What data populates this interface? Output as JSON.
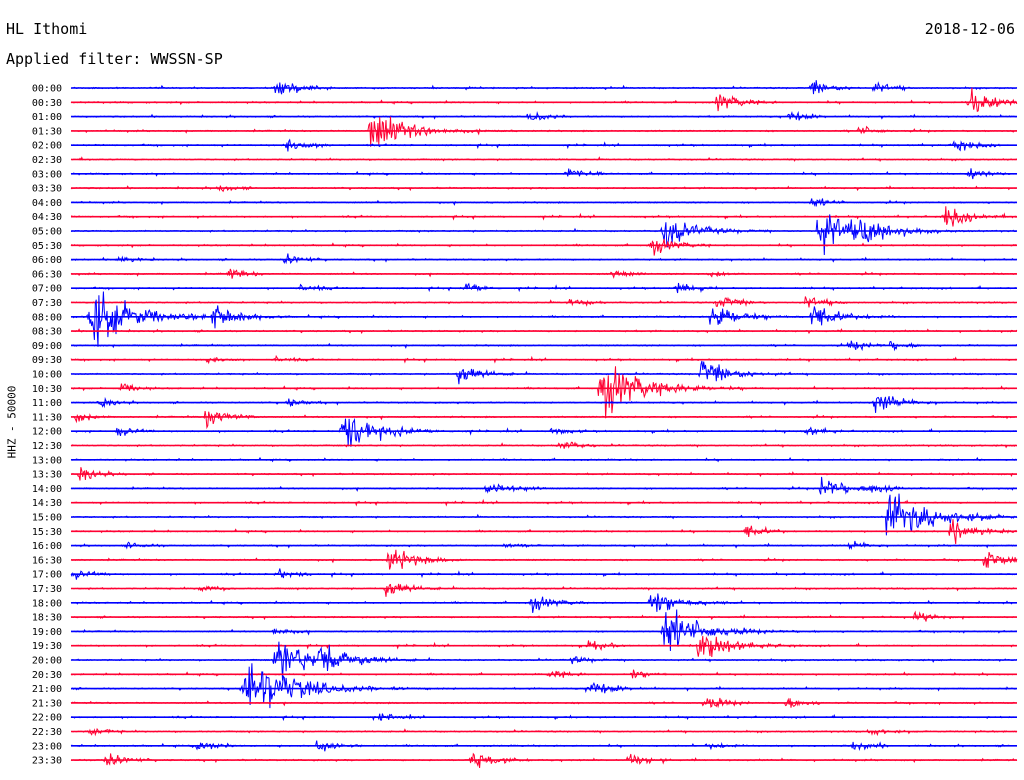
{
  "header": {
    "station": "HL Ithomi",
    "date": "2018-12-06",
    "filter": "Applied filter: WWSSN-SP"
  },
  "axis": {
    "ylabel": "HHZ - 50000"
  },
  "colors": {
    "blue": "#0000ff",
    "red": "#ff0033",
    "background": "#ffffff"
  },
  "chart_data": {
    "type": "seismic drum (helicorder)",
    "channel": "HHZ",
    "line_duration_minutes": 30,
    "lines": [
      "00:00",
      "00:30",
      "01:00",
      "01:30",
      "02:00",
      "02:30",
      "03:00",
      "03:30",
      "04:00",
      "04:30",
      "05:00",
      "05:30",
      "06:00",
      "06:30",
      "07:00",
      "07:30",
      "08:00",
      "08:30",
      "09:00",
      "09:30",
      "10:00",
      "10:30",
      "11:00",
      "11:30",
      "12:00",
      "12:30",
      "13:00",
      "13:30",
      "14:00",
      "14:30",
      "15:00",
      "15:30",
      "16:00",
      "16:30",
      "17:00",
      "17:30",
      "18:00",
      "18:30",
      "19:00",
      "19:30",
      "20:00",
      "20:30",
      "21:00",
      "21:30",
      "22:00",
      "22:30",
      "23:00",
      "23:30"
    ],
    "line_colors": [
      "blue",
      "red"
    ],
    "events": [
      {
        "line": 0,
        "minute": 6.5,
        "amp": 1.0
      },
      {
        "line": 0,
        "minute": 23.5,
        "amp": 0.8
      },
      {
        "line": 0,
        "minute": 25.5,
        "amp": 0.6
      },
      {
        "line": 1,
        "minute": 20.5,
        "amp": 1.0
      },
      {
        "line": 1,
        "minute": 28.5,
        "amp": 1.4
      },
      {
        "line": 2,
        "minute": 14.5,
        "amp": 0.6
      },
      {
        "line": 2,
        "minute": 22.8,
        "amp": 0.6
      },
      {
        "line": 3,
        "minute": 9.5,
        "amp": 2.4
      },
      {
        "line": 3,
        "minute": 25.0,
        "amp": 0.5
      },
      {
        "line": 4,
        "minute": 6.8,
        "amp": 0.8
      },
      {
        "line": 4,
        "minute": 28.0,
        "amp": 0.7
      },
      {
        "line": 6,
        "minute": 15.7,
        "amp": 0.6
      },
      {
        "line": 6,
        "minute": 28.5,
        "amp": 0.6
      },
      {
        "line": 7,
        "minute": 4.7,
        "amp": 0.4
      },
      {
        "line": 8,
        "minute": 23.5,
        "amp": 0.5
      },
      {
        "line": 9,
        "minute": 27.7,
        "amp": 1.2
      },
      {
        "line": 10,
        "minute": 18.8,
        "amp": 1.8
      },
      {
        "line": 10,
        "minute": 23.7,
        "amp": 2.6
      },
      {
        "line": 10,
        "minute": 25.0,
        "amp": 1.4
      },
      {
        "line": 11,
        "minute": 18.4,
        "amp": 1.0
      },
      {
        "line": 12,
        "minute": 1.5,
        "amp": 0.4
      },
      {
        "line": 12,
        "minute": 6.8,
        "amp": 0.6
      },
      {
        "line": 13,
        "minute": 5.0,
        "amp": 0.6
      },
      {
        "line": 13,
        "minute": 17.2,
        "amp": 0.4
      },
      {
        "line": 13,
        "minute": 20.2,
        "amp": 0.4
      },
      {
        "line": 14,
        "minute": 7.3,
        "amp": 0.4
      },
      {
        "line": 14,
        "minute": 12.5,
        "amp": 0.6
      },
      {
        "line": 14,
        "minute": 19.2,
        "amp": 0.6
      },
      {
        "line": 15,
        "minute": 15.8,
        "amp": 0.5
      },
      {
        "line": 15,
        "minute": 20.5,
        "amp": 0.8
      },
      {
        "line": 15,
        "minute": 23.3,
        "amp": 0.7
      },
      {
        "line": 16,
        "minute": 0.6,
        "amp": 3.2
      },
      {
        "line": 16,
        "minute": 4.5,
        "amp": 1.3
      },
      {
        "line": 16,
        "minute": 20.3,
        "amp": 1.5
      },
      {
        "line": 16,
        "minute": 23.5,
        "amp": 1.4
      },
      {
        "line": 18,
        "minute": 24.7,
        "amp": 0.6
      },
      {
        "line": 18,
        "minute": 26.0,
        "amp": 0.5
      },
      {
        "line": 19,
        "minute": 4.3,
        "amp": 0.4
      },
      {
        "line": 19,
        "minute": 6.5,
        "amp": 0.3
      },
      {
        "line": 20,
        "minute": 12.3,
        "amp": 1.0
      },
      {
        "line": 20,
        "minute": 20.0,
        "amp": 1.6
      },
      {
        "line": 21,
        "minute": 1.6,
        "amp": 0.5
      },
      {
        "line": 21,
        "minute": 16.8,
        "amp": 3.0
      },
      {
        "line": 22,
        "minute": 0.9,
        "amp": 0.5
      },
      {
        "line": 22,
        "minute": 6.9,
        "amp": 0.4
      },
      {
        "line": 22,
        "minute": 25.5,
        "amp": 1.2
      },
      {
        "line": 23,
        "minute": 0.1,
        "amp": 0.5
      },
      {
        "line": 23,
        "minute": 4.3,
        "amp": 1.0
      },
      {
        "line": 24,
        "minute": 1.5,
        "amp": 0.6
      },
      {
        "line": 24,
        "minute": 8.6,
        "amp": 2.2
      },
      {
        "line": 24,
        "minute": 15.2,
        "amp": 0.4
      },
      {
        "line": 24,
        "minute": 23.3,
        "amp": 0.5
      },
      {
        "line": 25,
        "minute": 15.5,
        "amp": 0.6
      },
      {
        "line": 27,
        "minute": 0.3,
        "amp": 0.8
      },
      {
        "line": 28,
        "minute": 13.2,
        "amp": 1.0
      },
      {
        "line": 28,
        "minute": 23.8,
        "amp": 1.3
      },
      {
        "line": 28,
        "minute": 25.4,
        "amp": 0.6
      },
      {
        "line": 30,
        "minute": 25.9,
        "amp": 3.0
      },
      {
        "line": 31,
        "minute": 21.4,
        "amp": 0.7
      },
      {
        "line": 31,
        "minute": 27.9,
        "amp": 1.2
      },
      {
        "line": 32,
        "minute": 1.8,
        "amp": 0.4
      },
      {
        "line": 32,
        "minute": 13.8,
        "amp": 0.4
      },
      {
        "line": 32,
        "minute": 24.7,
        "amp": 0.5
      },
      {
        "line": 33,
        "minute": 10.1,
        "amp": 1.4
      },
      {
        "line": 33,
        "minute": 29.0,
        "amp": 1.1
      },
      {
        "line": 34,
        "minute": 0.1,
        "amp": 0.6
      },
      {
        "line": 34,
        "minute": 6.5,
        "amp": 0.6
      },
      {
        "line": 35,
        "minute": 4.1,
        "amp": 0.4
      },
      {
        "line": 35,
        "minute": 10.0,
        "amp": 0.9
      },
      {
        "line": 36,
        "minute": 14.6,
        "amp": 0.9
      },
      {
        "line": 36,
        "minute": 18.4,
        "amp": 1.5
      },
      {
        "line": 37,
        "minute": 26.8,
        "amp": 0.6
      },
      {
        "line": 38,
        "minute": 18.8,
        "amp": 2.6
      },
      {
        "line": 38,
        "minute": 6.4,
        "amp": 0.5
      },
      {
        "line": 39,
        "minute": 16.4,
        "amp": 0.6
      },
      {
        "line": 39,
        "minute": 19.9,
        "amp": 1.8
      },
      {
        "line": 40,
        "minute": 6.5,
        "amp": 2.4
      },
      {
        "line": 40,
        "minute": 7.9,
        "amp": 1.6
      },
      {
        "line": 40,
        "minute": 15.9,
        "amp": 0.4
      },
      {
        "line": 41,
        "minute": 15.2,
        "amp": 0.5
      },
      {
        "line": 41,
        "minute": 17.8,
        "amp": 0.5
      },
      {
        "line": 42,
        "minute": 5.5,
        "amp": 3.6
      },
      {
        "line": 42,
        "minute": 16.4,
        "amp": 1.0
      },
      {
        "line": 43,
        "minute": 20.1,
        "amp": 0.8
      },
      {
        "line": 43,
        "minute": 22.7,
        "amp": 0.6
      },
      {
        "line": 44,
        "minute": 9.8,
        "amp": 0.4
      },
      {
        "line": 45,
        "minute": 0.6,
        "amp": 0.5
      },
      {
        "line": 45,
        "minute": 25.3,
        "amp": 0.4
      },
      {
        "line": 46,
        "minute": 4.0,
        "amp": 0.6
      },
      {
        "line": 46,
        "minute": 7.8,
        "amp": 0.8
      },
      {
        "line": 46,
        "minute": 20.2,
        "amp": 0.4
      },
      {
        "line": 46,
        "minute": 24.8,
        "amp": 0.6
      },
      {
        "line": 47,
        "minute": 1.1,
        "amp": 0.8
      },
      {
        "line": 47,
        "minute": 12.7,
        "amp": 1.0
      },
      {
        "line": 47,
        "minute": 17.7,
        "amp": 0.7
      }
    ]
  }
}
